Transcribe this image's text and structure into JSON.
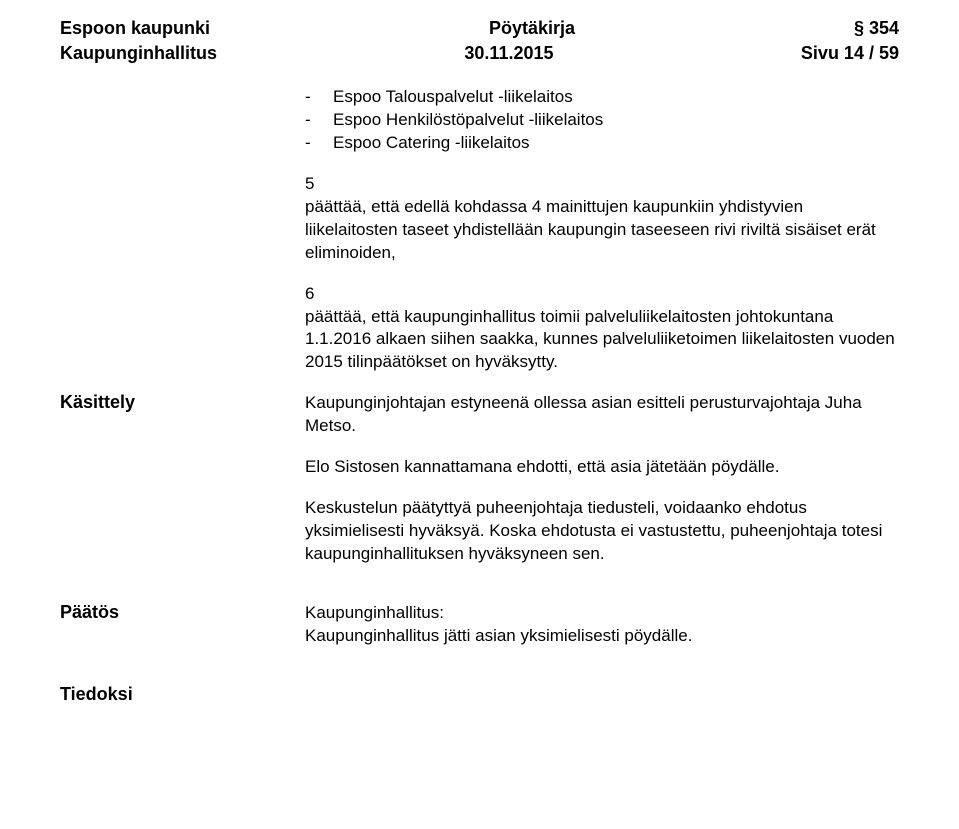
{
  "header": {
    "left1": "Espoon kaupunki",
    "center1": "Pöytäkirja",
    "right1": "§ 354",
    "left2": "Kaupunginhallitus",
    "center2": "30.11.2015",
    "right2": "Sivu 14 / 59"
  },
  "bullets": [
    "Espoo Talouspalvelut -liikelaitos",
    "Espoo Henkilöstöpalvelut -liikelaitos",
    "Espoo Catering -liikelaitos"
  ],
  "section5": {
    "num": "5",
    "text": "päättää, että edellä kohdassa 4 mainittujen kaupunkiin yhdistyvien liikelaitosten taseet yhdistellään kaupungin taseeseen rivi riviltä sisäiset erät eliminoiden,"
  },
  "section6": {
    "num": "6",
    "text": "päättää, että kaupunginhallitus toimii palveluliikelaitosten johtokuntana 1.1.2016 alkaen siihen saakka, kunnes palveluliiketoimen liikelaitosten vuoden 2015 tilinpäätökset on hyväksytty."
  },
  "kasittely": {
    "label": "Käsittely",
    "p1": "Kaupunginjohtajan estyneenä ollessa asian esitteli perusturvajohtaja Juha Metso.",
    "p2": "Elo Sistosen kannattamana ehdotti, että asia jätetään pöydälle.",
    "p3": "Keskustelun päätyttyä puheenjohtaja tiedusteli, voidaanko ehdotus yksimielisesti hyväksyä. Koska ehdotusta ei vastustettu, puheenjohtaja totesi kaupunginhallituksen hyväksyneen sen."
  },
  "paatos": {
    "label": "Päätös",
    "line1": "Kaupunginhallitus:",
    "line2": "Kaupunginhallitus jätti asian yksimielisesti pöydälle."
  },
  "tiedoksi": {
    "label": "Tiedoksi"
  }
}
